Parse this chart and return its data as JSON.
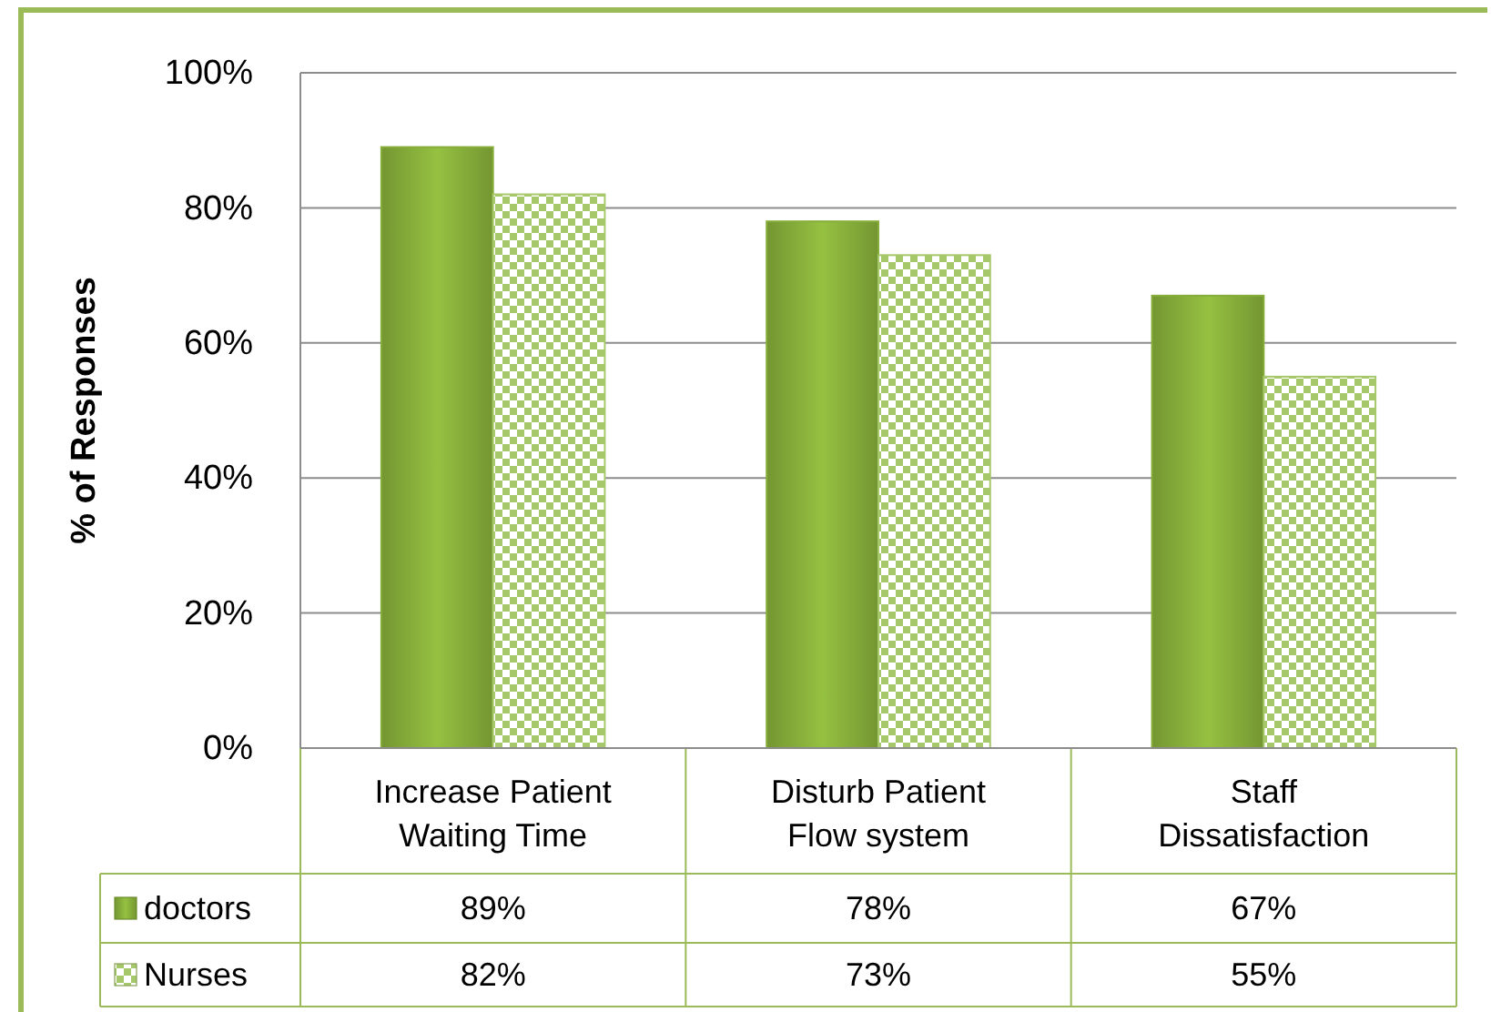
{
  "chart_data": {
    "type": "bar",
    "ylabel": "% of Responses",
    "categories": [
      "Increase Patient Waiting Time",
      "Disturb Patient Flow system",
      "Staff Dissatisfaction"
    ],
    "series": [
      {
        "name": "doctors",
        "color": "#86ad3a",
        "values": [
          89,
          78,
          67
        ]
      },
      {
        "name": "Nurses",
        "color": "#a6c86a",
        "values": [
          82,
          73,
          55
        ]
      }
    ],
    "ylim": [
      0,
      100
    ],
    "yticks": [
      {
        "value": 0,
        "label": "0%"
      },
      {
        "value": 20,
        "label": "20%"
      },
      {
        "value": 40,
        "label": "40%"
      },
      {
        "value": 60,
        "label": "60%"
      },
      {
        "value": 80,
        "label": "80%"
      },
      {
        "value": 100,
        "label": "100%"
      }
    ],
    "grid": "y",
    "legend": "bottom",
    "value_labels": [
      [
        "89%",
        "78%",
        "67%"
      ],
      [
        "82%",
        "73%",
        "55%"
      ]
    ]
  }
}
